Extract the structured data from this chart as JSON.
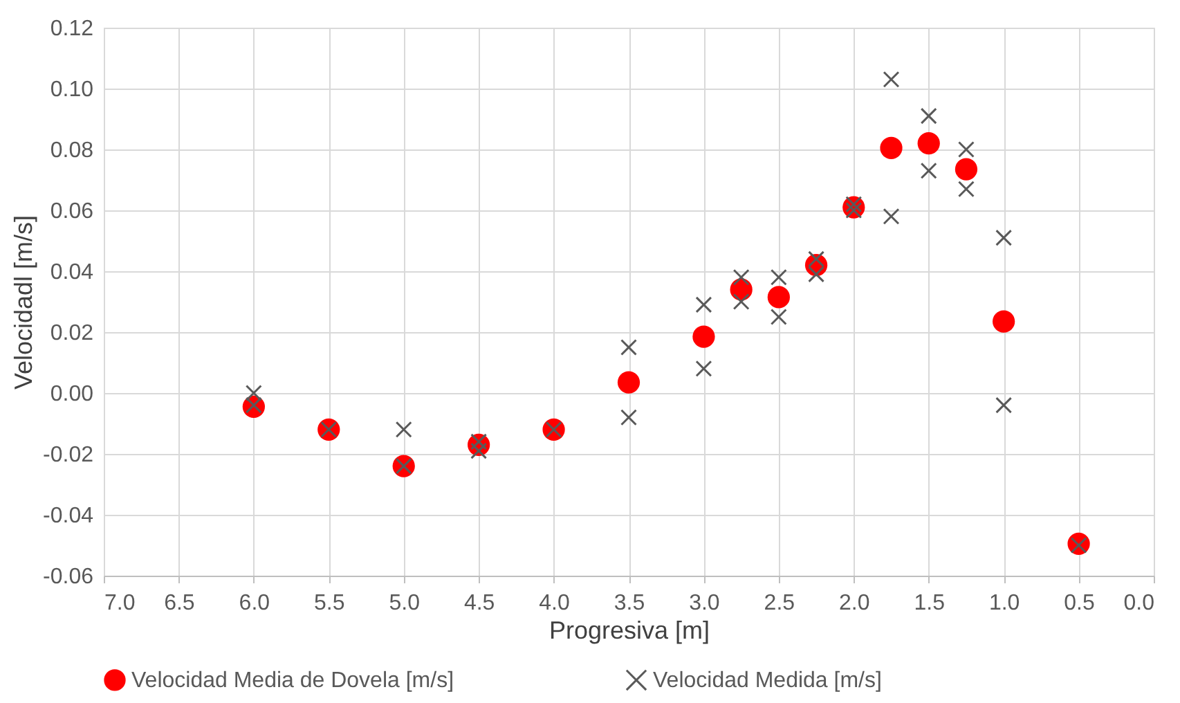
{
  "chart_data": {
    "type": "scatter",
    "xlabel": "Progresiva [m]",
    "ylabel": "Velocidadl [m/s]",
    "xlim": [
      7.0,
      0.0
    ],
    "xticks": [
      {
        "value": 7,
        "label": "7.0"
      },
      {
        "value": 6.5,
        "label": "6.5"
      },
      {
        "value": 6,
        "label": "6.0"
      },
      {
        "value": 5.5,
        "label": "5.5"
      },
      {
        "value": 5,
        "label": "5.0"
      },
      {
        "value": 4.5,
        "label": "4.5"
      },
      {
        "value": 4,
        "label": "4.0"
      },
      {
        "value": 3.5,
        "label": "3.5"
      },
      {
        "value": 3,
        "label": "3.0"
      },
      {
        "value": 2.5,
        "label": "2.5"
      },
      {
        "value": 2,
        "label": "2.0"
      },
      {
        "value": 1.5,
        "label": "1.5"
      },
      {
        "value": 1,
        "label": "1.0"
      },
      {
        "value": 0.5,
        "label": "0.5"
      },
      {
        "value": 0,
        "label": "0.0"
      }
    ],
    "ylim": [
      -0.06,
      0.12
    ],
    "yticks": [
      {
        "value": -0.06,
        "label": "-0.06"
      },
      {
        "value": -0.04,
        "label": "-0.04"
      },
      {
        "value": -0.02,
        "label": "-0.02"
      },
      {
        "value": 0,
        "label": "0.00"
      },
      {
        "value": 0.02,
        "label": "0.02"
      },
      {
        "value": 0.04,
        "label": "0.04"
      },
      {
        "value": 0.06,
        "label": "0.06"
      },
      {
        "value": 0.08,
        "label": "0.08"
      },
      {
        "value": 0.1,
        "label": "0.10"
      },
      {
        "value": 0.12,
        "label": "0.12"
      }
    ],
    "grid": true,
    "legend": "bottom",
    "series": [
      {
        "name": "Velocidad Media de Dovela [m/s]",
        "color": "#ff0000",
        "marker": "circle",
        "x": [
          6.0,
          5.5,
          5.0,
          4.5,
          4.0,
          3.5,
          3.0,
          2.75,
          2.5,
          2.25,
          2.0,
          1.75,
          1.5,
          1.25,
          1.0,
          0.5
        ],
        "values": [
          -0.0045,
          -0.012,
          -0.024,
          -0.017,
          -0.012,
          0.0035,
          0.0185,
          0.034,
          0.0315,
          0.042,
          0.061,
          0.0805,
          0.082,
          0.0735,
          0.0235,
          -0.0495
        ]
      },
      {
        "name": "Velocidad Medida [m/s]",
        "color": "#595959",
        "marker": "cross",
        "x": [
          6.0,
          6.0,
          5.5,
          5.0,
          5.0,
          4.5,
          4.5,
          4.0,
          3.5,
          3.5,
          3.0,
          3.0,
          2.75,
          2.75,
          2.5,
          2.5,
          2.25,
          2.25,
          2.0,
          2.0,
          1.75,
          1.75,
          1.5,
          1.5,
          1.25,
          1.25,
          1.0,
          1.0,
          0.5
        ],
        "values": [
          0.0,
          -0.004,
          -0.012,
          -0.012,
          -0.024,
          -0.016,
          -0.019,
          -0.012,
          0.015,
          -0.008,
          0.029,
          0.008,
          0.038,
          0.03,
          0.038,
          0.025,
          0.044,
          0.039,
          0.062,
          0.06,
          0.103,
          0.058,
          0.091,
          0.073,
          0.08,
          0.067,
          0.051,
          -0.004,
          -0.05
        ]
      }
    ]
  }
}
